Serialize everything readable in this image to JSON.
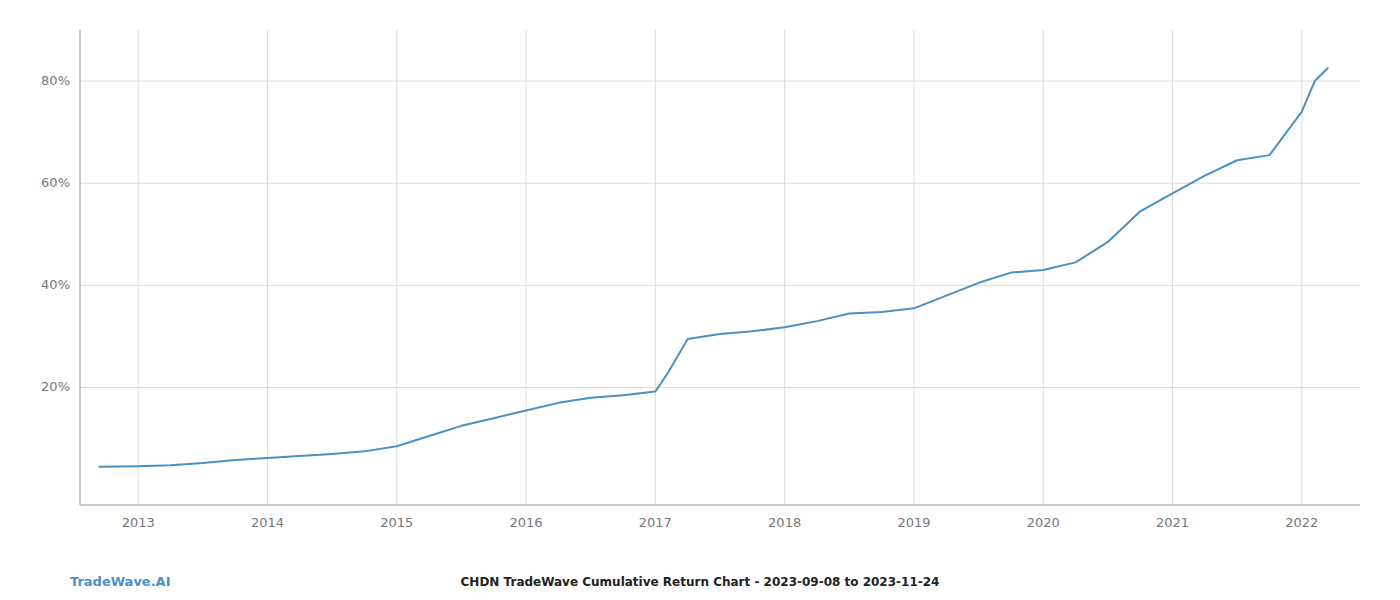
{
  "chart_data": {
    "type": "line",
    "title": "CHDN TradeWave Cumulative Return Chart - 2023-09-08 to 2023-11-24",
    "annotations": [
      "TradeWave.AI"
    ],
    "color": "#4a90c4",
    "grid": true,
    "x": [
      2012.7,
      2013.0,
      2013.25,
      2013.5,
      2013.75,
      2014.0,
      2014.25,
      2014.5,
      2014.75,
      2015.0,
      2015.25,
      2015.5,
      2015.75,
      2016.0,
      2016.25,
      2016.5,
      2016.75,
      2017.0,
      2017.1,
      2017.25,
      2017.5,
      2017.75,
      2018.0,
      2018.25,
      2018.5,
      2018.75,
      2019.0,
      2019.25,
      2019.5,
      2019.75,
      2020.0,
      2020.25,
      2020.5,
      2020.75,
      2021.0,
      2021.25,
      2021.5,
      2021.75,
      2022.0,
      2022.1,
      2022.2
    ],
    "values": [
      4.5,
      4.6,
      4.8,
      5.2,
      5.8,
      6.2,
      6.6,
      7.0,
      7.5,
      8.5,
      10.5,
      12.5,
      14.0,
      15.5,
      17.0,
      18.0,
      18.5,
      19.2,
      23.0,
      29.5,
      30.5,
      31.0,
      31.8,
      33.0,
      34.5,
      34.8,
      35.5,
      38.0,
      40.5,
      42.5,
      43.0,
      44.5,
      48.5,
      54.5,
      58.0,
      61.5,
      64.5,
      65.5,
      74.0,
      80.0,
      82.5
    ],
    "xlim": [
      2012.55,
      2022.45
    ],
    "xticks": [
      2013,
      2014,
      2015,
      2016,
      2017,
      2018,
      2019,
      2020,
      2021,
      2022
    ],
    "ylim": [
      -3,
      90
    ],
    "yticks": [
      {
        "value": 20,
        "label": "20%"
      },
      {
        "value": 40,
        "label": "40%"
      },
      {
        "value": 60,
        "label": "60%"
      },
      {
        "value": 80,
        "label": "80%"
      }
    ]
  }
}
